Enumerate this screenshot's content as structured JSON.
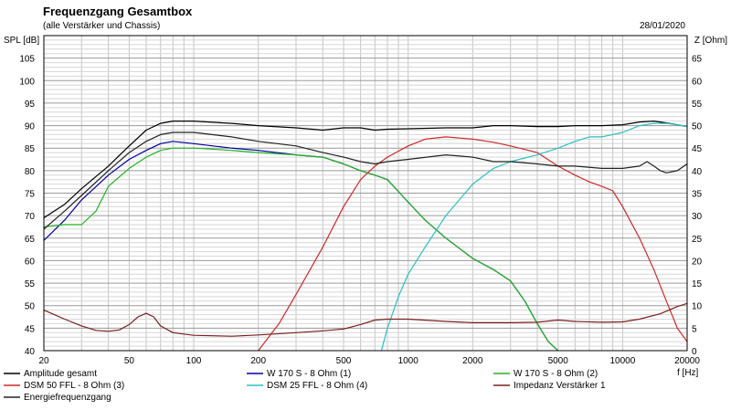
{
  "header": {
    "title": "Frequenzgang Gesamtbox",
    "subtitle": "(alle Verstärker und Chassis)",
    "date": "28/01/2020"
  },
  "chart_data": {
    "type": "line",
    "title": "Frequenzgang Gesamtbox",
    "subtitle": "(alle Verstärker und Chassis)",
    "xlabel": "f [Hz]",
    "ylabel": "SPL [dB]",
    "y2label": "Z [Ohm]",
    "x_scale": "log",
    "xlim": [
      20,
      20000
    ],
    "ylim": [
      40,
      110
    ],
    "y2lim": [
      0,
      70
    ],
    "grid": true,
    "legend_position": "bottom",
    "x_tick_labels": [
      {
        "v": 20,
        "t": "20"
      },
      {
        "v": 50,
        "t": "50"
      },
      {
        "v": 100,
        "t": "100"
      },
      {
        "v": 200,
        "t": "200"
      },
      {
        "v": 500,
        "t": "500"
      },
      {
        "v": 1000,
        "t": "1000"
      },
      {
        "v": 2000,
        "t": "2000"
      },
      {
        "v": 5000,
        "t": "5000"
      },
      {
        "v": 10000,
        "t": "10000"
      },
      {
        "v": 20000,
        "t": "20000"
      }
    ],
    "y_ticks": [
      40,
      45,
      50,
      55,
      60,
      65,
      70,
      75,
      80,
      85,
      90,
      95,
      100,
      105
    ],
    "y2_ticks": [
      0,
      5,
      10,
      15,
      20,
      25,
      30,
      35,
      40,
      45,
      50,
      55,
      60,
      65
    ],
    "series": [
      {
        "name": "Amplitude gesamt",
        "color": "#000000",
        "points": [
          [
            20,
            69.5
          ],
          [
            25,
            72.5
          ],
          [
            30,
            76
          ],
          [
            40,
            81
          ],
          [
            50,
            85.5
          ],
          [
            60,
            89
          ],
          [
            70,
            90.5
          ],
          [
            80,
            91
          ],
          [
            100,
            91
          ],
          [
            150,
            90.5
          ],
          [
            200,
            90
          ],
          [
            300,
            89.5
          ],
          [
            400,
            89
          ],
          [
            500,
            89.5
          ],
          [
            600,
            89.5
          ],
          [
            700,
            89
          ],
          [
            800,
            89.2
          ],
          [
            1000,
            89.3
          ],
          [
            1500,
            89.5
          ],
          [
            2000,
            89.5
          ],
          [
            2500,
            90
          ],
          [
            3000,
            90
          ],
          [
            4000,
            89.8
          ],
          [
            5000,
            89.8
          ],
          [
            6000,
            90
          ],
          [
            8000,
            90
          ],
          [
            10000,
            90.2
          ],
          [
            12000,
            90.8
          ],
          [
            14000,
            91
          ],
          [
            16000,
            90.6
          ],
          [
            18000,
            90.2
          ],
          [
            20000,
            89.8
          ]
        ]
      },
      {
        "name": "W 170 S - 8 Ohm (1)",
        "color": "#0000a0",
        "points": [
          [
            20,
            64.5
          ],
          [
            25,
            69
          ],
          [
            30,
            73.5
          ],
          [
            40,
            79
          ],
          [
            50,
            82.5
          ],
          [
            60,
            84.5
          ],
          [
            70,
            86
          ],
          [
            80,
            86.5
          ],
          [
            100,
            86
          ],
          [
            150,
            85
          ],
          [
            200,
            84.5
          ],
          [
            300,
            83.5
          ],
          [
            400,
            83
          ],
          [
            500,
            81.5
          ],
          [
            600,
            80
          ],
          [
            700,
            79
          ],
          [
            800,
            78
          ],
          [
            1000,
            73
          ],
          [
            1200,
            69
          ],
          [
            1500,
            65
          ],
          [
            2000,
            60.5
          ],
          [
            2500,
            58
          ],
          [
            3000,
            55.5
          ],
          [
            3500,
            51
          ],
          [
            4000,
            46
          ],
          [
            4500,
            42
          ],
          [
            5000,
            40
          ]
        ]
      },
      {
        "name": "W 170 S - 8 Ohm (2)",
        "color": "#22b322",
        "points": [
          [
            20,
            67.5
          ],
          [
            25,
            68
          ],
          [
            30,
            68
          ],
          [
            35,
            71
          ],
          [
            40,
            76.5
          ],
          [
            50,
            80.5
          ],
          [
            60,
            83
          ],
          [
            70,
            84.5
          ],
          [
            80,
            85
          ],
          [
            100,
            85
          ],
          [
            150,
            84.5
          ],
          [
            200,
            84
          ],
          [
            300,
            83.5
          ],
          [
            400,
            83
          ],
          [
            500,
            81.5
          ],
          [
            600,
            80
          ],
          [
            700,
            79
          ],
          [
            800,
            78
          ],
          [
            1000,
            73
          ],
          [
            1200,
            69
          ],
          [
            1500,
            65
          ],
          [
            2000,
            60.5
          ],
          [
            2500,
            58
          ],
          [
            3000,
            55.5
          ],
          [
            3500,
            51
          ],
          [
            4000,
            46
          ],
          [
            4500,
            42
          ],
          [
            5000,
            40
          ]
        ]
      },
      {
        "name": "DSM 50 FFL - 8 Ohm (3)",
        "color": "#d02828",
        "points": [
          [
            200,
            40
          ],
          [
            250,
            46
          ],
          [
            300,
            52.5
          ],
          [
            400,
            63
          ],
          [
            500,
            72
          ],
          [
            600,
            78
          ],
          [
            700,
            81
          ],
          [
            800,
            83
          ],
          [
            1000,
            85.5
          ],
          [
            1200,
            87
          ],
          [
            1500,
            87.5
          ],
          [
            2000,
            87
          ],
          [
            2500,
            86.3
          ],
          [
            3000,
            85.5
          ],
          [
            4000,
            84
          ],
          [
            5000,
            81
          ],
          [
            6000,
            79
          ],
          [
            7000,
            77.5
          ],
          [
            8000,
            76.5
          ],
          [
            9000,
            75.5
          ],
          [
            10000,
            72
          ],
          [
            12000,
            65
          ],
          [
            14000,
            58
          ],
          [
            16000,
            51
          ],
          [
            18000,
            45
          ],
          [
            20000,
            42
          ]
        ]
      },
      {
        "name": "DSM 25 FFL - 8 Ohm (4)",
        "color": "#2abfbf",
        "points": [
          [
            750,
            40
          ],
          [
            800,
            45
          ],
          [
            900,
            52
          ],
          [
            1000,
            57
          ],
          [
            1200,
            63
          ],
          [
            1500,
            70
          ],
          [
            2000,
            77
          ],
          [
            2500,
            80.5
          ],
          [
            3000,
            82
          ],
          [
            4000,
            83.5
          ],
          [
            5000,
            85
          ],
          [
            6000,
            86.5
          ],
          [
            7000,
            87.5
          ],
          [
            8000,
            87.5
          ],
          [
            10000,
            88.5
          ],
          [
            12000,
            90
          ],
          [
            14000,
            90.5
          ],
          [
            16000,
            90.5
          ],
          [
            18000,
            90.2
          ],
          [
            20000,
            89.8
          ]
        ]
      },
      {
        "name": "Impedanz Verstärker 1",
        "color": "#7a1e1e",
        "points": [
          [
            20,
            9
          ],
          [
            25,
            7
          ],
          [
            30,
            5.5
          ],
          [
            35,
            4.5
          ],
          [
            40,
            4.3
          ],
          [
            45,
            4.6
          ],
          [
            50,
            5.8
          ],
          [
            55,
            7.5
          ],
          [
            60,
            8.3
          ],
          [
            65,
            7.5
          ],
          [
            70,
            5.5
          ],
          [
            80,
            4
          ],
          [
            100,
            3.4
          ],
          [
            150,
            3.2
          ],
          [
            200,
            3.5
          ],
          [
            300,
            4
          ],
          [
            400,
            4.4
          ],
          [
            500,
            4.8
          ],
          [
            600,
            5.8
          ],
          [
            700,
            6.8
          ],
          [
            800,
            7
          ],
          [
            1000,
            7
          ],
          [
            1500,
            6.5
          ],
          [
            2000,
            6.2
          ],
          [
            3000,
            6.2
          ],
          [
            4000,
            6.3
          ],
          [
            5000,
            6.8
          ],
          [
            6000,
            6.5
          ],
          [
            8000,
            6.3
          ],
          [
            10000,
            6.4
          ],
          [
            12000,
            7
          ],
          [
            15000,
            8.2
          ],
          [
            18000,
            9.8
          ],
          [
            20000,
            10.5
          ]
        ]
      },
      {
        "name": "Energiefrequenzgang",
        "color": "#222222",
        "points": [
          [
            20,
            67
          ],
          [
            25,
            71
          ],
          [
            30,
            74.5
          ],
          [
            40,
            80
          ],
          [
            50,
            84
          ],
          [
            60,
            86.5
          ],
          [
            70,
            88
          ],
          [
            80,
            88.5
          ],
          [
            100,
            88.5
          ],
          [
            150,
            87.5
          ],
          [
            200,
            86.5
          ],
          [
            300,
            85.5
          ],
          [
            400,
            84
          ],
          [
            500,
            83
          ],
          [
            600,
            82
          ],
          [
            700,
            81.5
          ],
          [
            800,
            82
          ],
          [
            1000,
            82.5
          ],
          [
            1500,
            83.5
          ],
          [
            2000,
            83
          ],
          [
            2500,
            82
          ],
          [
            3000,
            82
          ],
          [
            4000,
            81.5
          ],
          [
            5000,
            81
          ],
          [
            6000,
            81
          ],
          [
            8000,
            80.5
          ],
          [
            10000,
            80.5
          ],
          [
            12000,
            81
          ],
          [
            13000,
            82
          ],
          [
            14000,
            81
          ],
          [
            15000,
            80
          ],
          [
            16000,
            79.5
          ],
          [
            18000,
            80
          ],
          [
            20000,
            81.5
          ]
        ]
      }
    ]
  }
}
